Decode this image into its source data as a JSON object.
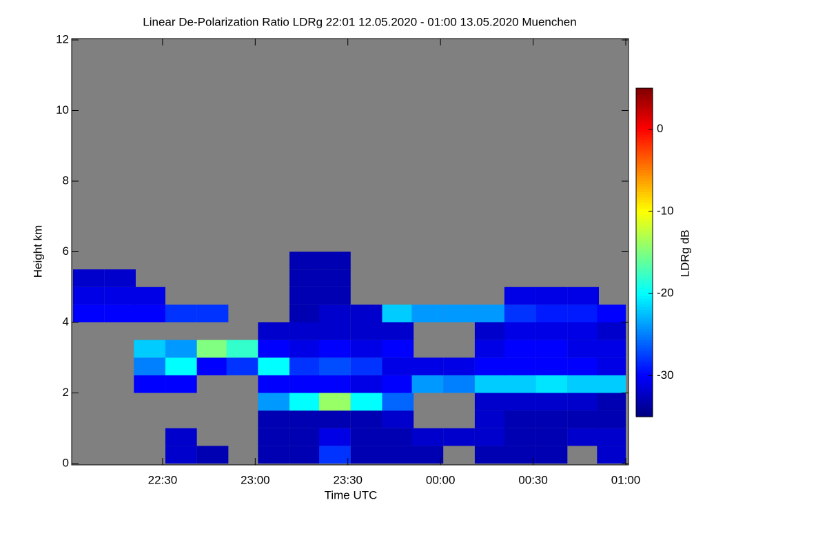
{
  "chart_data": {
    "type": "heatmap",
    "title": "Linear De-Polarization Ratio LDRg   22:01 12.05.2020 - 01:00 13.05.2020 Muenchen",
    "x_label": "Time UTC",
    "y_label": "Height km",
    "colorbar_label": "LDRg dB",
    "background": "#808080",
    "colormap": "jet",
    "xlim": [
      22.0167,
      25.0
    ],
    "xticks": [
      {
        "value": 22.5,
        "label": "22:30"
      },
      {
        "value": 23.0,
        "label": "23:00"
      },
      {
        "value": 23.5,
        "label": "23:30"
      },
      {
        "value": 24.0,
        "label": "00:00"
      },
      {
        "value": 24.5,
        "label": "00:30"
      },
      {
        "value": 25.0,
        "label": "01:00"
      }
    ],
    "ylim": [
      0,
      12
    ],
    "yticks": [
      0,
      2,
      4,
      6,
      8,
      10,
      12
    ],
    "zlim": [
      -35,
      5
    ],
    "zticks": [
      0,
      -10,
      -20,
      -30
    ],
    "x": [
      22.1,
      22.27,
      22.43,
      22.6,
      22.77,
      22.93,
      23.1,
      23.27,
      23.43,
      23.6,
      23.77,
      23.93,
      24.1,
      24.27,
      24.43,
      24.6,
      24.77,
      24.93
    ],
    "y": [
      0.25,
      0.75,
      1.25,
      1.75,
      2.25,
      2.75,
      3.25,
      3.75,
      4.25,
      4.75,
      5.25,
      5.75
    ],
    "values": [
      [
        null,
        null,
        null,
        -32,
        -33,
        null,
        -33,
        -33,
        -28,
        -33,
        -33,
        -33,
        null,
        -33,
        -33,
        -33,
        null,
        -32
      ],
      [
        null,
        null,
        null,
        -32,
        null,
        null,
        -33,
        -33,
        -31,
        -33,
        -33,
        -32,
        -32,
        -32,
        -33,
        -33,
        -32,
        -32
      ],
      [
        null,
        null,
        null,
        null,
        null,
        null,
        -33,
        -33,
        -33,
        -33,
        -32,
        null,
        null,
        -32,
        -33,
        -33,
        -33,
        -33
      ],
      [
        null,
        null,
        null,
        null,
        null,
        null,
        -24,
        -20,
        -14,
        -20,
        -26,
        null,
        null,
        -32,
        -32,
        -32,
        -32,
        -33
      ],
      [
        null,
        null,
        -30,
        -30,
        null,
        null,
        -30,
        -30,
        -30,
        -31,
        -30,
        -24,
        -25,
        -22,
        -22,
        -21,
        -22,
        -22
      ],
      [
        null,
        null,
        -25,
        -20,
        -30,
        -28,
        -20,
        -28,
        -27,
        -28,
        -31,
        -31,
        -31,
        -30,
        -30,
        -30,
        -30,
        -31
      ],
      [
        null,
        null,
        -22,
        -24,
        -15,
        -18,
        -30,
        -31,
        -30,
        -31,
        -30,
        null,
        null,
        -31,
        -30,
        -30,
        -31,
        -31
      ],
      [
        null,
        null,
        null,
        null,
        null,
        null,
        -32,
        -32,
        -32,
        -32,
        -32,
        null,
        null,
        -32,
        -31,
        -31,
        -31,
        -32
      ],
      [
        -30,
        -30,
        -30,
        -28,
        -28,
        null,
        null,
        -33,
        -32,
        -32,
        -22,
        -24,
        -24,
        -24,
        -28,
        -29,
        -29,
        -30
      ],
      [
        -31,
        -31,
        -31,
        null,
        null,
        null,
        null,
        -33,
        -33,
        null,
        null,
        null,
        null,
        null,
        -31,
        -31,
        -31,
        null
      ],
      [
        -32,
        -32,
        null,
        null,
        null,
        null,
        null,
        -33,
        -33,
        null,
        null,
        null,
        null,
        null,
        null,
        null,
        null,
        null
      ],
      [
        null,
        null,
        null,
        null,
        null,
        null,
        null,
        -33,
        -33,
        null,
        null,
        null,
        null,
        null,
        null,
        null,
        null,
        null
      ]
    ]
  }
}
